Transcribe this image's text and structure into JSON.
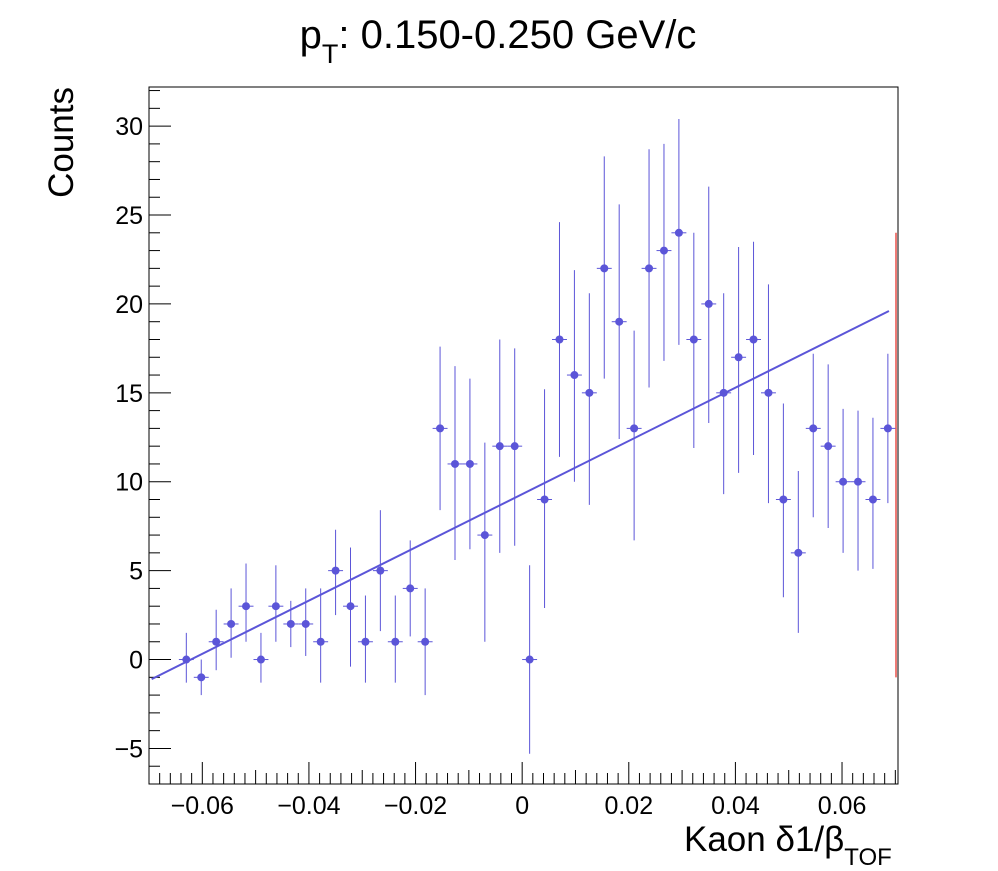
{
  "colors": {
    "data": "#5b55d8",
    "fit": "#5b55d8",
    "red_line": "#e8504a",
    "frame": "#000000"
  },
  "chart_data": {
    "type": "scatter",
    "title_parts": {
      "prefix": "p",
      "sub": "T",
      "suffix": ": 0.150-0.250 GeV/c"
    },
    "xlabel_parts": {
      "main": "Kaon δ1/β",
      "sub": "TOF"
    },
    "ylabel": "Counts",
    "xlim": [
      -0.07,
      0.0705
    ],
    "ylim": [
      -7,
      32.2
    ],
    "x_ticks": [
      -0.06,
      -0.04,
      -0.02,
      0,
      0.02,
      0.04,
      0.06
    ],
    "x_tick_labels": [
      "−0.06",
      "−0.04",
      "−0.02",
      "0",
      "0.02",
      "0.04",
      "0.06"
    ],
    "y_ticks": [
      -5,
      0,
      5,
      10,
      15,
      20,
      25,
      30
    ],
    "y_tick_labels": [
      "−5",
      "0",
      "5",
      "10",
      "15",
      "20",
      "25",
      "30"
    ],
    "bin_width": 0.0028,
    "series": [
      {
        "x": [
          -0.063,
          -0.0602,
          -0.0574,
          -0.0546,
          -0.0518,
          -0.049,
          -0.0462,
          -0.0434,
          -0.0406,
          -0.0378,
          -0.035,
          -0.0322,
          -0.0294,
          -0.0266,
          -0.0238,
          -0.021,
          -0.0182,
          -0.0154,
          -0.0126,
          -0.0098,
          -0.007,
          -0.0042,
          -0.0014,
          0.0014,
          0.0042,
          0.007,
          0.0098,
          0.0126,
          0.0154,
          0.0182,
          0.021,
          0.0238,
          0.0266,
          0.0294,
          0.0322,
          0.035,
          0.0378,
          0.0406,
          0.0434,
          0.0462,
          0.049,
          0.0518,
          0.0546,
          0.0574,
          0.0602,
          0.063,
          0.0658,
          0.0686
        ],
        "y": [
          0,
          -1,
          1,
          2,
          3,
          0,
          3,
          2,
          2,
          1,
          5,
          3,
          1,
          5,
          1,
          4,
          1,
          13,
          11,
          11,
          7,
          12,
          12,
          0,
          9,
          18,
          16,
          15,
          22,
          19,
          13,
          22,
          23,
          24,
          18,
          20,
          15,
          17,
          18,
          15,
          9,
          6,
          13,
          12,
          10,
          10,
          9,
          13
        ],
        "yerr_low": [
          1.3,
          1.0,
          1.6,
          1.9,
          2.0,
          1.3,
          2.0,
          1.3,
          1.8,
          2.3,
          2.5,
          3.4,
          2.3,
          3.4,
          2.3,
          2.7,
          3.0,
          4.6,
          5.4,
          4.8,
          6.0,
          6.0,
          5.6,
          5.3,
          6.1,
          6.6,
          6.0,
          6.3,
          6.2,
          6.6,
          6.3,
          6.7,
          6.2,
          6.3,
          6.1,
          6.7,
          5.7,
          6.5,
          6.5,
          6.2,
          5.5,
          4.5,
          5.0,
          4.6,
          4.0,
          5.0,
          3.9,
          4.2
        ],
        "yerr_high": [
          1.5,
          1.0,
          1.8,
          2.0,
          2.4,
          1.5,
          2.3,
          1.3,
          2.0,
          3.0,
          2.3,
          3.3,
          2.6,
          3.4,
          2.6,
          2.7,
          3.0,
          4.6,
          5.5,
          4.8,
          5.2,
          6.0,
          5.5,
          5.3,
          6.2,
          6.6,
          5.9,
          5.6,
          6.3,
          6.6,
          5.5,
          6.7,
          6.0,
          6.4,
          6.0,
          6.6,
          5.6,
          6.2,
          5.5,
          6.1,
          5.4,
          4.6,
          4.2,
          4.6,
          4.1,
          4.0,
          4.6,
          4.2
        ]
      }
    ],
    "fit_line": {
      "x": [
        -0.0695,
        0.0688
      ],
      "y": [
        -1.1,
        19.6
      ]
    },
    "red_line": {
      "x": 0.0705,
      "y": [
        -1.0,
        24.0
      ]
    }
  }
}
